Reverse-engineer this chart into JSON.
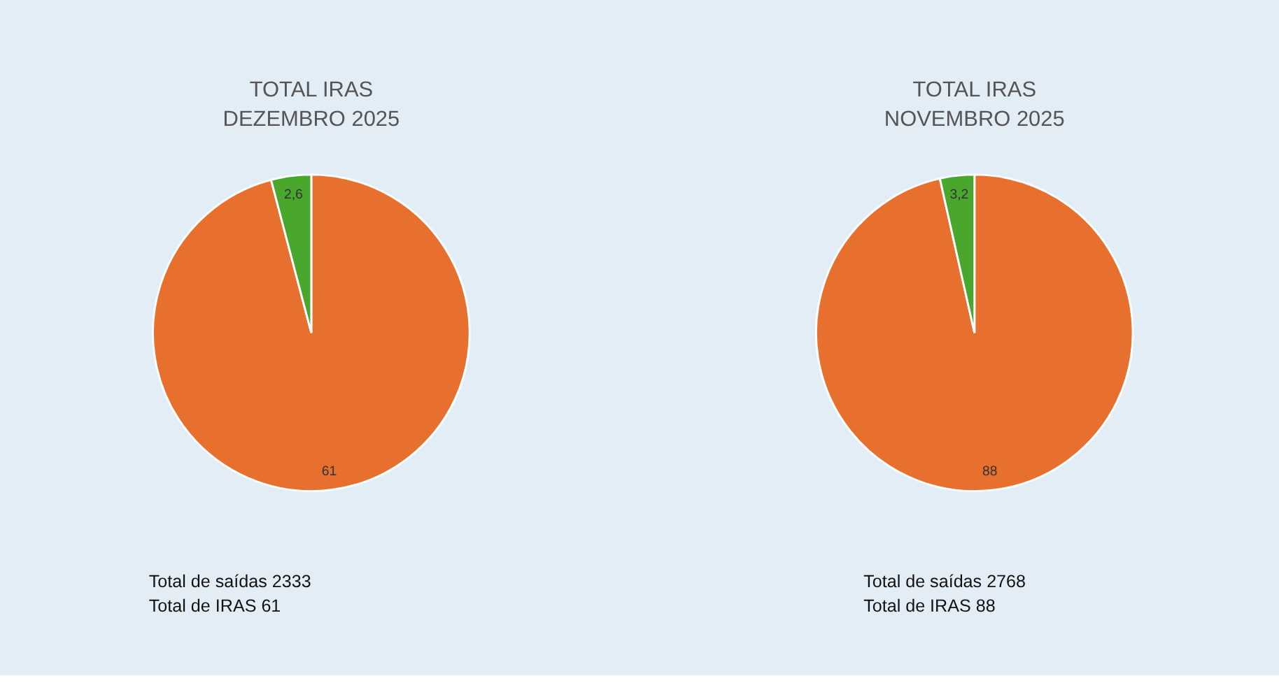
{
  "chart_data": [
    {
      "type": "pie",
      "title": "TOTAL IRAS",
      "subtitle": "DEZEMBRO 2025",
      "categories": [
        null,
        null
      ],
      "values": [
        61,
        2.6
      ],
      "value_labels": [
        "61",
        "2,6"
      ],
      "colors": [
        "#e8702f",
        "#4aa72e"
      ],
      "annotations": [
        "Total de saídas 2333",
        "Total de IRAS 61"
      ]
    },
    {
      "type": "pie",
      "title": "TOTAL IRAS",
      "subtitle": "NOVEMBRO 2025",
      "categories": [
        null,
        null
      ],
      "values": [
        88,
        3.2
      ],
      "value_labels": [
        "88",
        "3,2"
      ],
      "colors": [
        "#e8702f",
        "#4aa72e"
      ],
      "annotations": [
        "Total de saídas 2768",
        "Total de IRAS 88"
      ]
    }
  ]
}
